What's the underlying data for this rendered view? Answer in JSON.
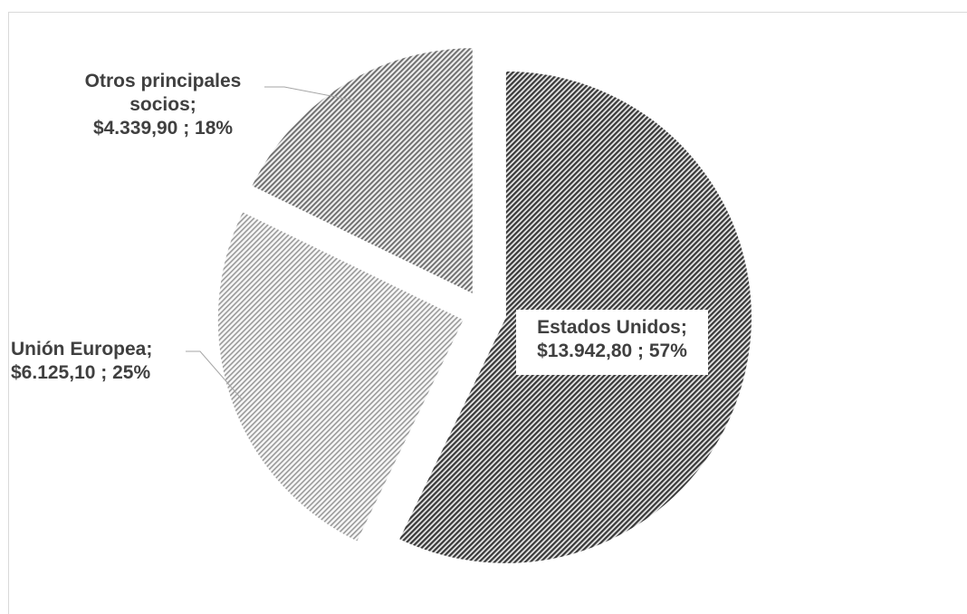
{
  "chart_data": {
    "type": "pie",
    "title": "",
    "slices": [
      {
        "label": "Estados Unidos",
        "value": 13942.8,
        "value_text": "$13.942,80",
        "percent_text": "57%",
        "pattern": "dark-diagonal",
        "color": "#404040"
      },
      {
        "label": "Unión Europea",
        "value": 6125.1,
        "value_text": "$6.125,10",
        "percent_text": "25%",
        "pattern": "light-diagonal",
        "color": "#a6a6a6"
      },
      {
        "label": "Otros principales socios",
        "value": 4339.9,
        "value_text": "$4.339,90",
        "percent_text": "18%",
        "pattern": "medium-diagonal",
        "color": "#7f7f7f"
      }
    ],
    "legend": "none",
    "data_labels": "label; value ; percent"
  }
}
